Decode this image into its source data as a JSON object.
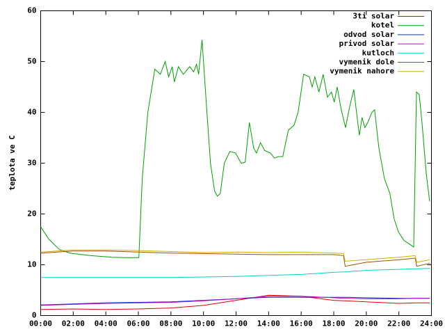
{
  "chart_data": {
    "type": "line",
    "ylabel": "teplota ve C",
    "xlim": [
      0,
      24
    ],
    "ylim": [
      0,
      60
    ],
    "yticks": [
      0,
      10,
      20,
      30,
      40,
      50,
      60
    ],
    "xticks": [
      {
        "value": 0,
        "label": "00:00"
      },
      {
        "value": 2,
        "label": "02:00"
      },
      {
        "value": 4,
        "label": "04:00"
      },
      {
        "value": 6,
        "label": "06:00"
      },
      {
        "value": 8,
        "label": "08:00"
      },
      {
        "value": 10,
        "label": "10:00"
      },
      {
        "value": 12,
        "label": "12:00"
      },
      {
        "value": 14,
        "label": "14:00"
      },
      {
        "value": 16,
        "label": "16:00"
      },
      {
        "value": 18,
        "label": "18:00"
      },
      {
        "value": 20,
        "label": "20:00"
      },
      {
        "value": 22,
        "label": "22:00"
      },
      {
        "value": 24,
        "label": "24:00"
      }
    ],
    "grid": false,
    "legend": "top-right",
    "series": [
      {
        "name": "3ti solar",
        "color": "#e00000",
        "x": [
          0,
          2,
          4,
          6,
          8,
          10,
          12,
          14,
          16,
          18,
          18.6,
          18.7,
          20,
          22,
          23.0,
          23.1,
          23.9
        ],
        "values": [
          1.2,
          1.3,
          1.2,
          1.3,
          1.5,
          2,
          3,
          4,
          3.8,
          3.0,
          2.9,
          2.9,
          2.7,
          2.4,
          2.5,
          2.5,
          2.5
        ]
      },
      {
        "name": "kotel",
        "color": "#00a000",
        "x": [
          0,
          0.51,
          1.15,
          1.79,
          3.08,
          4.36,
          5.21,
          6.03,
          6.24,
          6.58,
          7.01,
          7.35,
          7.65,
          7.86,
          8.08,
          8.21,
          8.46,
          8.76,
          9.15,
          9.4,
          9.57,
          9.7,
          9.91,
          10.17,
          10.43,
          10.68,
          10.85,
          11.03,
          11.28,
          11.62,
          11.97,
          12.31,
          12.56,
          12.82,
          13.08,
          13.25,
          13.5,
          13.76,
          14.1,
          14.36,
          14.62,
          14.87,
          15.21,
          15.56,
          15.81,
          16.15,
          16.5,
          16.67,
          16.84,
          17.09,
          17.35,
          17.61,
          17.86,
          18.03,
          18.21,
          18.46,
          18.72,
          18.97,
          19.23,
          19.4,
          19.57,
          19.74,
          19.91,
          20.09,
          20.34,
          20.51,
          20.77,
          21.11,
          21.45,
          21.71,
          21.97,
          22.31,
          22.91,
          23.08,
          23.25,
          23.42,
          23.68,
          23.89
        ],
        "values": [
          17.5,
          15,
          13,
          12.3,
          11.8,
          11.5,
          11.4,
          11.4,
          27,
          40,
          48.5,
          47.5,
          50,
          47,
          49,
          46,
          49,
          47.5,
          49,
          48,
          49.5,
          47.5,
          54.3,
          42,
          30,
          24.5,
          23.5,
          24,
          30,
          32.3,
          32,
          30,
          30.2,
          38,
          33,
          32,
          34,
          32.5,
          32,
          31,
          31.3,
          31.3,
          36.5,
          37.5,
          40,
          47.5,
          47,
          45,
          47,
          44,
          47.5,
          43,
          44,
          42,
          45,
          40.5,
          37,
          41,
          44.5,
          40,
          35.5,
          39,
          37,
          38,
          40,
          40.5,
          33,
          27,
          24,
          19,
          16.5,
          14.8,
          13.5,
          44,
          43.5,
          38,
          28,
          22.5
        ]
      },
      {
        "name": "odvod solar",
        "color": "#0030e0",
        "x": [
          0,
          2,
          4,
          6,
          8,
          10,
          12,
          14,
          16,
          18,
          18.6,
          18.7,
          20,
          22,
          23.0,
          23.1,
          23.9
        ],
        "values": [
          2.1,
          2.3,
          2.5,
          2.6,
          2.7,
          3.0,
          3.3,
          3.6,
          3.6,
          3.6,
          3.6,
          3.6,
          3.5,
          3.4,
          3.4,
          3.4,
          3.4
        ]
      },
      {
        "name": "privod solar",
        "color": "#c000c0",
        "x": [
          0,
          2,
          4,
          6,
          8,
          10,
          12,
          14,
          16,
          18,
          18.6,
          18.7,
          20,
          22,
          23.0,
          23.1,
          23.9
        ],
        "values": [
          2.0,
          2.2,
          2.4,
          2.5,
          2.6,
          2.9,
          3.3,
          3.8,
          3.8,
          3.5,
          3.4,
          3.4,
          3.3,
          3.3,
          3.4,
          3.4,
          3.4
        ]
      },
      {
        "name": "kutloch",
        "color": "#00d0d0",
        "x": [
          0,
          2,
          4,
          6,
          8,
          10,
          12,
          14,
          16,
          18,
          18.6,
          18.7,
          20,
          22,
          23.0,
          23.1,
          23.9
        ],
        "values": [
          7.5,
          7.5,
          7.5,
          7.5,
          7.5,
          7.6,
          7.7,
          7.9,
          8.1,
          8.5,
          8.6,
          8.6,
          8.9,
          9.1,
          9.2,
          9.2,
          9.3
        ]
      },
      {
        "name": "vymenik dole",
        "color": "#a05000",
        "x": [
          0,
          2,
          4,
          6,
          8,
          10,
          12,
          14,
          16,
          18,
          18.6,
          18.7,
          20,
          22,
          23.0,
          23.1,
          23.9
        ],
        "values": [
          12.3,
          12.7,
          12.7,
          12.5,
          12.3,
          12.2,
          12.1,
          12.0,
          12.0,
          12.0,
          11.8,
          9.7,
          10.5,
          11.0,
          11.3,
          9.7,
          10.3
        ]
      },
      {
        "name": "vymenik nahore",
        "color": "#d0b000",
        "x": [
          0,
          2,
          4,
          6,
          8,
          10,
          12,
          14,
          16,
          18,
          18.6,
          18.7,
          20,
          22,
          23.0,
          23.1,
          23.9
        ],
        "values": [
          12.5,
          12.9,
          12.9,
          12.8,
          12.6,
          12.4,
          12.5,
          12.4,
          12.5,
          12.3,
          12.2,
          10.7,
          11.0,
          11.5,
          11.8,
          10.5,
          11.0
        ]
      }
    ]
  }
}
